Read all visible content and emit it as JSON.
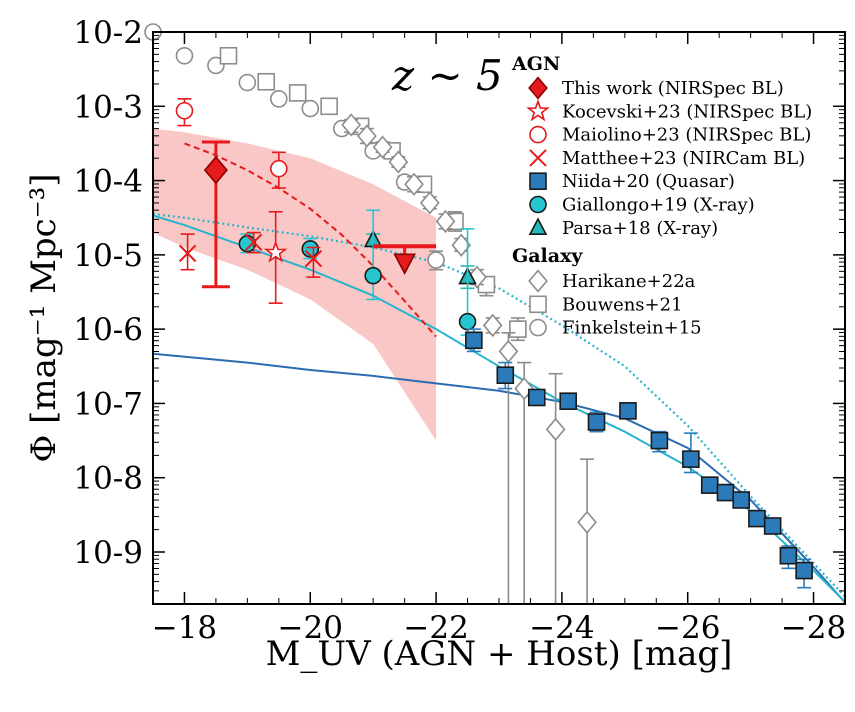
{
  "chart_data": {
    "type": "scatter",
    "title": "z ∼ 5",
    "xlabel": "M_UV (AGN + Host) [mag]",
    "ylabel": "Φ [mag⁻¹ Mpc⁻³]",
    "xlim": [
      -17.5,
      -28.5
    ],
    "ylim_log10": [
      -9.7,
      -2.0
    ],
    "xticks": [
      -18,
      -20,
      -22,
      -24,
      -26,
      -28
    ],
    "xtick_labels": [
      "−18",
      "−20",
      "−22",
      "−24",
      "−26",
      "−28"
    ],
    "yticks_log10": [
      -2,
      -3,
      -4,
      -5,
      -6,
      -7,
      -8,
      -9
    ],
    "ytick_labels": [
      "10-2",
      "10-3",
      "10-4",
      "10-5",
      "10-6",
      "10-7",
      "10-8",
      "10-9"
    ],
    "legend": {
      "agn_header": "AGN",
      "galaxy_header": "Galaxy",
      "agn": [
        {
          "label": "This work (NIRSpec BL)",
          "marker": "diamond",
          "color": "#e41a1c",
          "fill": "filled"
        },
        {
          "label": "Kocevski+23 (NIRSpec BL)",
          "marker": "star",
          "color": "#e41a1c",
          "fill": "open"
        },
        {
          "label": "Maiolino+23 (NIRSpec BL)",
          "marker": "circle",
          "color": "#e41a1c",
          "fill": "open"
        },
        {
          "label": "Matthee+23 (NIRCam BL)",
          "marker": "x",
          "color": "#e41a1c",
          "fill": "none"
        },
        {
          "label": "Niida+20 (Quasar)",
          "marker": "square",
          "color": "#2b7bba",
          "fill": "filled"
        },
        {
          "label": "Giallongo+19 (X-ray)",
          "marker": "circle",
          "color": "#26c6d0",
          "fill": "filled"
        },
        {
          "label": "Parsa+18 (X-ray)",
          "marker": "triangle",
          "color": "#26b8b8",
          "fill": "filled"
        }
      ],
      "galaxy": [
        {
          "label": "Harikane+22a",
          "marker": "diamond",
          "color": "#8c8c8c",
          "fill": "open"
        },
        {
          "label": "Bouwens+21",
          "marker": "square",
          "color": "#8c8c8c",
          "fill": "open"
        },
        {
          "label": "Finkelstein+15",
          "marker": "circle",
          "color": "#8c8c8c",
          "fill": "open"
        }
      ]
    },
    "series": [
      {
        "name": "This work (NIRSpec BL)",
        "marker": "diamond",
        "color": "#e41a1c",
        "fill": "filled",
        "points": [
          {
            "x": -18.5,
            "y": -3.86,
            "ylo": -5.43,
            "yhi": -3.48
          }
        ]
      },
      {
        "name": "This work upper limit",
        "marker": "triangle-down",
        "color": "#e41a1c",
        "fill": "filled",
        "points": [
          {
            "x": -21.5,
            "y": -5.1
          }
        ],
        "limit_bar": [
          -21.0,
          -22.0
        ]
      },
      {
        "name": "Kocevski+23 (NIRSpec BL)",
        "marker": "star",
        "color": "#e41a1c",
        "fill": "open",
        "points": [
          {
            "x": -19.45,
            "y": -4.97,
            "ylo": -5.65,
            "yhi": -4.42
          }
        ]
      },
      {
        "name": "Maiolino+23 (NIRSpec BL)",
        "marker": "circle",
        "color": "#e41a1c",
        "fill": "open",
        "points": [
          {
            "x": -18.0,
            "y": -3.06,
            "ylo": -3.26,
            "yhi": -2.9
          },
          {
            "x": -19.5,
            "y": -3.84,
            "ylo": -4.1,
            "yhi": -3.62
          }
        ]
      },
      {
        "name": "Matthee+23 (NIRCam BL)",
        "marker": "x",
        "color": "#e41a1c",
        "fill": "none",
        "points": [
          {
            "x": -18.05,
            "y": -4.98,
            "ylo": -5.2,
            "yhi": -4.72
          },
          {
            "x": -19.1,
            "y": -4.83,
            "ylo": -4.97,
            "yhi": -4.7
          },
          {
            "x": -20.05,
            "y": -5.05,
            "ylo": -5.3,
            "yhi": -4.9
          }
        ]
      },
      {
        "name": "Niida+20 (Quasar)",
        "marker": "square",
        "color": "#2b7bba",
        "fill": "filled",
        "points": [
          {
            "x": -22.6,
            "y": -6.15,
            "ylo": -6.3,
            "yhi": -6.0
          },
          {
            "x": -23.1,
            "y": -6.62,
            "ylo": -6.8,
            "yhi": -6.45
          },
          {
            "x": -23.6,
            "y": -6.92,
            "ylo": -7.0,
            "yhi": -6.85
          },
          {
            "x": -24.1,
            "y": -6.97,
            "ylo": -7.05,
            "yhi": -6.88
          },
          {
            "x": -24.55,
            "y": -7.25,
            "ylo": -7.38,
            "yhi": -7.12
          },
          {
            "x": -25.05,
            "y": -7.1,
            "ylo": -7.2,
            "yhi": -7.02
          },
          {
            "x": -25.55,
            "y": -7.5,
            "ylo": -7.65,
            "yhi": -7.38
          },
          {
            "x": -26.05,
            "y": -7.75,
            "ylo": -7.93,
            "yhi": -7.4
          },
          {
            "x": -26.35,
            "y": -8.1,
            "ylo": -8.18,
            "yhi": -8.03
          },
          {
            "x": -26.6,
            "y": -8.2,
            "ylo": -8.27,
            "yhi": -8.13
          },
          {
            "x": -26.85,
            "y": -8.3,
            "ylo": -8.37,
            "yhi": -8.23
          },
          {
            "x": -27.1,
            "y": -8.55,
            "ylo": -8.63,
            "yhi": -8.47
          },
          {
            "x": -27.35,
            "y": -8.65,
            "ylo": -8.73,
            "yhi": -8.57
          },
          {
            "x": -27.6,
            "y": -9.05,
            "ylo": -9.22,
            "yhi": -8.92
          },
          {
            "x": -27.85,
            "y": -9.25,
            "ylo": -9.48,
            "yhi": -9.1
          }
        ]
      },
      {
        "name": "Giallongo+19 (X-ray)",
        "marker": "circle",
        "color": "#26c6d0",
        "fill": "filled",
        "points": [
          {
            "x": -19.0,
            "y": -4.85,
            "ylo": -4.97,
            "yhi": -4.72
          },
          {
            "x": -20.0,
            "y": -4.92,
            "ylo": -5.05,
            "yhi": -4.78
          },
          {
            "x": -21.0,
            "y": -5.28,
            "ylo": -5.6,
            "yhi": -4.4
          },
          {
            "x": -22.5,
            "y": -5.9,
            "ylo": -6.08,
            "yhi": -4.65
          }
        ]
      },
      {
        "name": "Parsa+18 (X-ray)",
        "marker": "triangle",
        "color": "#26b8b8",
        "fill": "filled",
        "points": [
          {
            "x": -21.0,
            "y": -4.8,
            "ylo": -4.88,
            "yhi": -4.72
          },
          {
            "x": -22.5,
            "y": -5.3,
            "ylo": -5.45,
            "yhi": -5.15
          }
        ]
      },
      {
        "name": "Harikane+22a",
        "marker": "diamond",
        "color": "#8c8c8c",
        "fill": "open",
        "points": [
          {
            "x": -20.65,
            "y": -3.25,
            "ylo": -3.35,
            "yhi": -3.18
          },
          {
            "x": -20.9,
            "y": -3.4,
            "ylo": -3.5,
            "yhi": -3.3
          },
          {
            "x": -21.15,
            "y": -3.55,
            "ylo": -3.62,
            "yhi": -3.48
          },
          {
            "x": -21.4,
            "y": -3.75,
            "ylo": -3.82,
            "yhi": -3.68
          },
          {
            "x": -21.65,
            "y": -4.05,
            "ylo": -4.15,
            "yhi": -3.95
          },
          {
            "x": -21.9,
            "y": -4.3,
            "ylo": -4.38,
            "yhi": -4.22
          },
          {
            "x": -22.15,
            "y": -4.55,
            "ylo": -4.65,
            "yhi": -4.45
          },
          {
            "x": -22.4,
            "y": -4.87,
            "ylo": -4.95,
            "yhi": -4.78
          },
          {
            "x": -22.65,
            "y": -5.3,
            "ylo": -5.4,
            "yhi": -5.2
          },
          {
            "x": -22.9,
            "y": -5.95,
            "ylo": -6.05,
            "yhi": -5.85
          },
          {
            "x": -23.15,
            "y": -6.3,
            "ylo": -9.7,
            "yhi": -6.05
          },
          {
            "x": -23.4,
            "y": -6.8,
            "ylo": -9.7,
            "yhi": -6.45
          },
          {
            "x": -23.9,
            "y": -7.35,
            "ylo": -9.7,
            "yhi": -6.6
          },
          {
            "x": -24.4,
            "y": -8.6,
            "ylo": -9.7,
            "yhi": -7.75
          }
        ]
      },
      {
        "name": "Bouwens+21",
        "marker": "square",
        "color": "#8c8c8c",
        "fill": "open",
        "points": [
          {
            "x": -18.7,
            "y": -2.32,
            "ylo": -2.38,
            "yhi": -2.27
          },
          {
            "x": -19.3,
            "y": -2.67,
            "ylo": -2.73,
            "yhi": -2.62
          },
          {
            "x": -19.8,
            "y": -2.82,
            "ylo": -2.87,
            "yhi": -2.77
          },
          {
            "x": -20.3,
            "y": -3.0,
            "ylo": -3.05,
            "yhi": -2.95
          },
          {
            "x": -20.8,
            "y": -3.27,
            "ylo": -3.32,
            "yhi": -3.22
          },
          {
            "x": -21.3,
            "y": -3.6,
            "ylo": -3.67,
            "yhi": -3.53
          },
          {
            "x": -21.8,
            "y": -4.05,
            "ylo": -4.13,
            "yhi": -3.97
          },
          {
            "x": -22.3,
            "y": -4.55,
            "ylo": -4.68,
            "yhi": -4.42
          },
          {
            "x": -22.8,
            "y": -5.4,
            "ylo": -5.55,
            "yhi": -5.3
          },
          {
            "x": -23.3,
            "y": -6.0,
            "ylo": -6.15,
            "yhi": -5.85
          }
        ]
      },
      {
        "name": "Finkelstein+15",
        "marker": "circle",
        "color": "#8c8c8c",
        "fill": "open",
        "points": [
          {
            "x": -17.5,
            "y": -2.0,
            "ylo": -2.07,
            "yhi": -1.93
          },
          {
            "x": -18.0,
            "y": -2.32,
            "ylo": -2.37,
            "yhi": -2.27
          },
          {
            "x": -18.5,
            "y": -2.45,
            "ylo": -2.5,
            "yhi": -2.4
          },
          {
            "x": -19.0,
            "y": -2.68,
            "ylo": -2.73,
            "yhi": -2.63
          },
          {
            "x": -19.5,
            "y": -2.9,
            "ylo": -2.95,
            "yhi": -2.85
          },
          {
            "x": -20.0,
            "y": -3.03,
            "ylo": -3.08,
            "yhi": -2.98
          },
          {
            "x": -20.5,
            "y": -3.3,
            "ylo": -3.36,
            "yhi": -3.24
          },
          {
            "x": -21.0,
            "y": -3.6,
            "ylo": -3.67,
            "yhi": -3.53
          },
          {
            "x": -21.5,
            "y": -4.02,
            "ylo": -4.1,
            "yhi": -3.94
          },
          {
            "x": -22.0,
            "y": -5.07,
            "ylo": -5.2,
            "yhi": -4.95
          }
        ]
      }
    ],
    "curves": [
      {
        "name": "fit-dark-blue",
        "color": "#2b6cb0",
        "style": "solid",
        "x": [
          -17.5,
          -19,
          -20,
          -21,
          -22,
          -23,
          -24,
          -25,
          -26,
          -27,
          -28,
          -28.5
        ],
        "y": [
          -6.33,
          -6.45,
          -6.55,
          -6.63,
          -6.73,
          -6.83,
          -6.98,
          -7.2,
          -7.6,
          -8.3,
          -9.2,
          -9.68
        ]
      },
      {
        "name": "fit-cyan",
        "color": "#26b5cc",
        "style": "solid",
        "x": [
          -17.5,
          -18,
          -19,
          -20,
          -21,
          -22,
          -23,
          -24,
          -25,
          -26,
          -27,
          -28,
          -28.5
        ],
        "y": [
          -4.47,
          -4.6,
          -4.9,
          -5.2,
          -5.55,
          -6.0,
          -6.5,
          -6.98,
          -7.38,
          -7.85,
          -8.45,
          -9.25,
          -9.67
        ]
      },
      {
        "name": "fit-cyan-dotted",
        "color": "#26b5cc",
        "style": "dotted",
        "x": [
          -17.5,
          -18,
          -19,
          -20,
          -21,
          -22,
          -23,
          -24,
          -25,
          -26,
          -27,
          -28,
          -28.5
        ],
        "y": [
          -4.45,
          -4.5,
          -4.63,
          -4.75,
          -4.9,
          -5.1,
          -5.45,
          -5.95,
          -6.5,
          -7.3,
          -8.25,
          -9.15,
          -9.6
        ]
      },
      {
        "name": "fit-red-dashed",
        "color": "#e41a1c",
        "style": "dashed",
        "x": [
          -18.0,
          -18.5,
          -19,
          -19.5,
          -20,
          -20.5,
          -21,
          -21.5,
          -22.0
        ],
        "y": [
          -3.5,
          -3.66,
          -3.86,
          -4.1,
          -4.38,
          -4.73,
          -5.15,
          -5.62,
          -6.1
        ]
      }
    ],
    "band": {
      "name": "This work 1σ range",
      "color": "#f8b4b4",
      "x": [
        -17.5,
        -18,
        -19,
        -20,
        -21,
        -22
      ],
      "ylo": [
        -4.7,
        -4.9,
        -5.2,
        -5.6,
        -6.2,
        -7.5
      ],
      "yhi": [
        -3.3,
        -3.35,
        -3.5,
        -3.7,
        -4.05,
        -4.5
      ]
    }
  }
}
